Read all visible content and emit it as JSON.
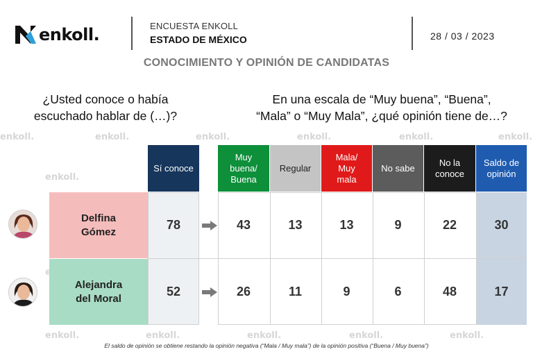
{
  "header": {
    "brand": "enkoll.",
    "survey_label": "ENCUESTA ENKOLL",
    "state_label": "ESTADO DE MÉXICO",
    "date": "28 / 03 / 2023"
  },
  "subtitle": "CONOCIMIENTO Y OPINIÓN DE CANDIDATAS",
  "question_left": [
    "¿Usted conoce o había",
    "escuchado hablar de (…)?"
  ],
  "question_right": [
    "En una escala de “Muy buena”, “Buena”,",
    "“Mala” o “Muy Mala”, ¿qué opinión tiene de…?"
  ],
  "watermark_text": "enkoll.",
  "chart_data": {
    "type": "table",
    "columns": [
      {
        "key": "conoce",
        "label": [
          "Sí conoce"
        ],
        "color": "#16365c"
      },
      {
        "key": "buena",
        "label": [
          "Muy",
          "buena/",
          "Buena"
        ],
        "color": "#0e8f3a"
      },
      {
        "key": "regular",
        "label": [
          "Regular"
        ],
        "color": "#c4c4c4"
      },
      {
        "key": "mala",
        "label": [
          "Mala/",
          "Muy",
          "mala"
        ],
        "color": "#e01a1a"
      },
      {
        "key": "nosabe",
        "label": [
          "No sabe"
        ],
        "color": "#5c5c5c"
      },
      {
        "key": "noconoce",
        "label": [
          "No la",
          "conoce"
        ],
        "color": "#1c1c1c"
      },
      {
        "key": "saldo",
        "label": [
          "Saldo de",
          "opinión"
        ],
        "color": "#1f5cb0"
      }
    ],
    "rows": [
      {
        "name": [
          "Delfina",
          "Gómez"
        ],
        "name_bg": "#f5bcbc",
        "values": [
          78,
          43,
          13,
          13,
          9,
          22,
          30
        ]
      },
      {
        "name": [
          "Alejandra",
          "del Moral"
        ],
        "name_bg": "#a8dcc4",
        "values": [
          52,
          26,
          11,
          9,
          6,
          48,
          17
        ]
      }
    ]
  },
  "footnote": "El saldo de opinión se obtiene restando la opinión negativa (“Mala / Muy mala”) de la opinión positiva (“Buena / Muy buena”)"
}
